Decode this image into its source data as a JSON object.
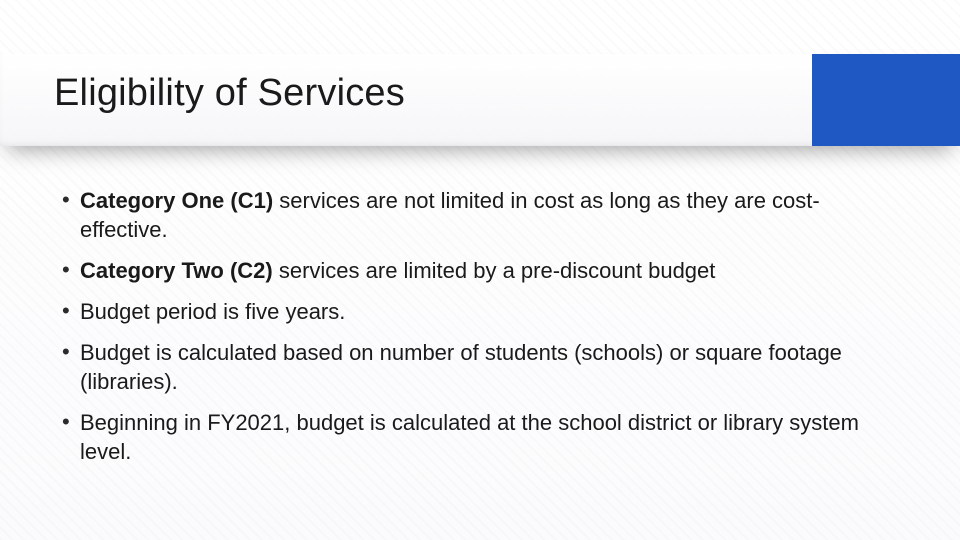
{
  "slide": {
    "title": "Eligibility of Services",
    "title_color": "#1a1a1a",
    "title_fontsize": 38,
    "accent_color": "#1f57c3",
    "background_color": "#ffffff",
    "body_fontsize": 22,
    "body_color": "#1a1a1a",
    "bullets": [
      {
        "bold": "Category One (C1)",
        "rest": " services are not limited in cost as long as they are cost- effective."
      },
      {
        "bold": "Category Two (C2)",
        "rest": " services are limited by a pre-discount budget"
      },
      {
        "bold": "",
        "rest": "Budget period is five years."
      },
      {
        "bold": "",
        "rest": "Budget is calculated based on number of students (schools) or square footage (libraries)."
      },
      {
        "bold": "",
        "rest": "Beginning in FY2021, budget is calculated at the school district or library system level."
      }
    ]
  }
}
